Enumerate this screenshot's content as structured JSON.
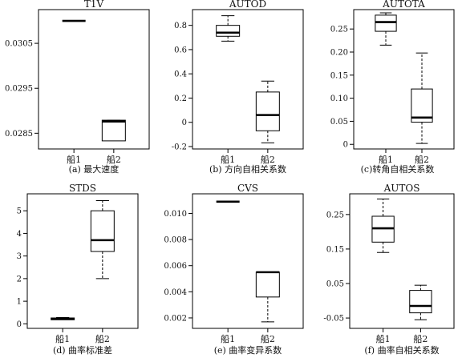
{
  "chart_data": [
    {
      "type": "boxplot",
      "title": "T1V",
      "caption": "(a) 最大速度",
      "categories": [
        "船1",
        "船2"
      ],
      "ylim": [
        0.02815,
        0.03125
      ],
      "yticks": [
        {
          "v": 0.0285,
          "label": "0.0285"
        },
        {
          "v": 0.0295,
          "label": "0.0295"
        },
        {
          "v": 0.0305,
          "label": "0.0305"
        }
      ],
      "boxes": [
        {
          "min": 0.031,
          "q1": 0.031,
          "median": 0.031,
          "q3": 0.031,
          "max": 0.031
        },
        {
          "min": 0.02833,
          "q1": 0.02833,
          "median": 0.02876,
          "q3": 0.02879,
          "max": 0.02879
        }
      ]
    },
    {
      "type": "boxplot",
      "title": "AUTOD",
      "caption": "(b) 方向自相关系数",
      "categories": [
        "船1",
        "船2"
      ],
      "ylim": [
        -0.22,
        0.93
      ],
      "yticks": [
        {
          "v": -0.2,
          "label": "-0.2"
        },
        {
          "v": 0,
          "label": "0"
        },
        {
          "v": 0.2,
          "label": "0.2"
        },
        {
          "v": 0.4,
          "label": "0.4"
        },
        {
          "v": 0.6,
          "label": "0.6"
        },
        {
          "v": 0.8,
          "label": "0.8"
        }
      ],
      "boxes": [
        {
          "min": 0.67,
          "q1": 0.71,
          "median": 0.74,
          "q3": 0.8,
          "max": 0.88
        },
        {
          "min": -0.17,
          "q1": -0.07,
          "median": 0.06,
          "q3": 0.25,
          "max": 0.34
        }
      ]
    },
    {
      "type": "boxplot",
      "title": "AUTOTA",
      "caption": "(c)转角自相关系数",
      "categories": [
        "船1",
        "船2"
      ],
      "ylim": [
        -0.01,
        0.292
      ],
      "yticks": [
        {
          "v": 0,
          "label": "0"
        },
        {
          "v": 0.05,
          "label": "0.05"
        },
        {
          "v": 0.1,
          "label": "0.10"
        },
        {
          "v": 0.15,
          "label": "0.15"
        },
        {
          "v": 0.2,
          "label": "0.20"
        },
        {
          "v": 0.25,
          "label": "0.25"
        }
      ],
      "boxes": [
        {
          "min": 0.215,
          "q1": 0.245,
          "median": 0.265,
          "q3": 0.28,
          "max": 0.285
        },
        {
          "min": 0.002,
          "q1": 0.048,
          "median": 0.058,
          "q3": 0.12,
          "max": 0.198
        }
      ]
    },
    {
      "type": "boxplot",
      "title": "STDS",
      "caption": "(d) 曲率标准差",
      "categories": [
        "船1",
        "船2"
      ],
      "ylim": [
        -0.2,
        5.75
      ],
      "yticks": [
        {
          "v": 0,
          "label": "0"
        },
        {
          "v": 1,
          "label": "1"
        },
        {
          "v": 2,
          "label": "2"
        },
        {
          "v": 3,
          "label": "3"
        },
        {
          "v": 4,
          "label": "4"
        },
        {
          "v": 5,
          "label": "5"
        }
      ],
      "boxes": [
        {
          "min": 0.15,
          "q1": 0.18,
          "median": 0.22,
          "q3": 0.26,
          "max": 0.28
        },
        {
          "min": 2.0,
          "q1": 3.2,
          "median": 3.7,
          "q3": 5.0,
          "max": 5.45
        }
      ]
    },
    {
      "type": "boxplot",
      "title": "CVS",
      "caption": "(e) 曲率变异系数",
      "categories": [
        "船1",
        "船2"
      ],
      "ylim": [
        0.0012,
        0.0115
      ],
      "yticks": [
        {
          "v": 0.002,
          "label": "0.002"
        },
        {
          "v": 0.004,
          "label": "0.004"
        },
        {
          "v": 0.006,
          "label": "0.006"
        },
        {
          "v": 0.008,
          "label": "0.008"
        },
        {
          "v": 0.01,
          "label": "0.010"
        }
      ],
      "boxes": [
        {
          "min": 0.0109,
          "q1": 0.0109,
          "median": 0.0109,
          "q3": 0.0109,
          "max": 0.0109
        },
        {
          "min": 0.0017,
          "q1": 0.0036,
          "median": 0.0055,
          "q3": 0.0055,
          "max": 0.0055
        }
      ]
    },
    {
      "type": "boxplot",
      "title": "AUTOS",
      "caption": "(f) 曲率自相关系数",
      "categories": [
        "船1",
        "船2"
      ],
      "ylim": [
        -0.08,
        0.31
      ],
      "yticks": [
        {
          "v": -0.05,
          "label": "-0.05"
        },
        {
          "v": 0.05,
          "label": "0.05"
        },
        {
          "v": 0.15,
          "label": "0.15"
        },
        {
          "v": 0.25,
          "label": "0.25"
        }
      ],
      "boxes": [
        {
          "min": 0.14,
          "q1": 0.17,
          "median": 0.21,
          "q3": 0.245,
          "max": 0.295
        },
        {
          "min": -0.055,
          "q1": -0.035,
          "median": -0.015,
          "q3": 0.03,
          "max": 0.045
        }
      ]
    }
  ]
}
